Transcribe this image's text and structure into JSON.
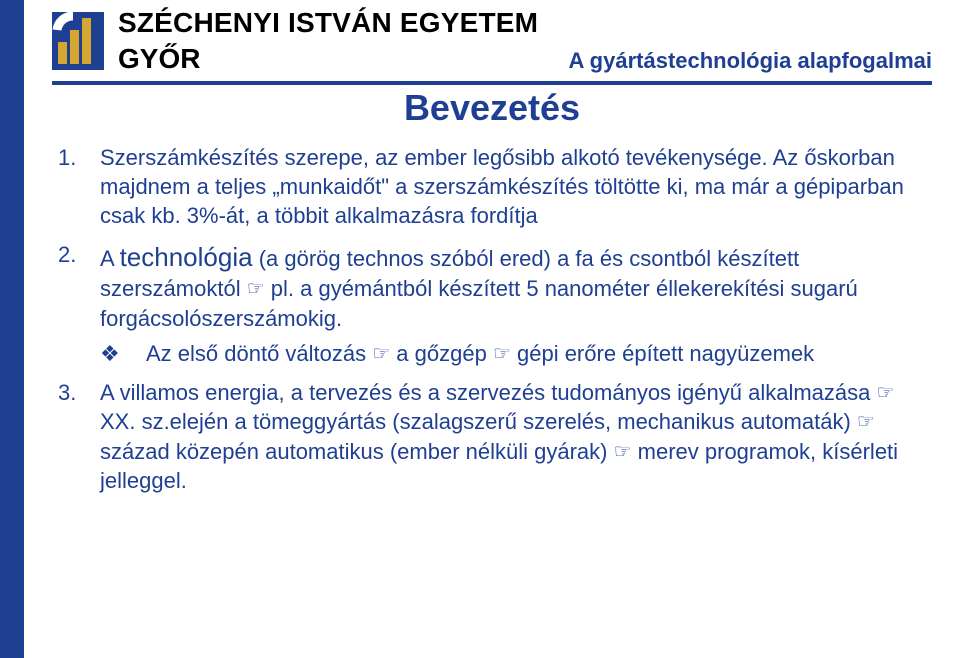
{
  "colors": {
    "blue": "#1f3f93",
    "gold": "#d4a731",
    "black": "#000000",
    "logo_white": "#ffffff"
  },
  "header": {
    "university_line1": "SZÉCHENYI ISTVÁN EGYETEM",
    "university_line2": "GYŐR",
    "subject": "A gyártástechnológia alapfogalmai"
  },
  "title": "Bevezetés",
  "points": {
    "p1": "Szerszámkészítés szerepe, az ember legősibb alkotó tevékenysége. Az őskorban majdnem a teljes „munkaidőt\" a szerszámkészítés töltötte ki, ma már a gépiparban csak kb. 3%-át, a többit alkalmazásra fordítja",
    "p2_a": "A ",
    "p2_tech": "technológia",
    "p2_b": " (a görög technos szóból ered) a fa és csontból készített szerszámoktól ",
    "p2_c": " pl. a gyémántból készített 5 nanométer éllekerekítési sugarú forgácsolószerszámokig.",
    "p2_sub_a": "Az első döntő változás ",
    "p2_sub_b": " a gőzgép ",
    "p2_sub_c": " gépi erőre épített nagyüzemek",
    "p3_a": "A villamos energia, a tervezés és a szervezés tudományos igényű alkalmazása ",
    "p3_b": " XX. sz.elején a tömeggyártás (szalagszerű szerelés, mechanikus automaták) ",
    "p3_c": " század közepén automatikus (ember nélküli gyárak) ",
    "p3_d": " merev programok, kísérleti jelleggel."
  },
  "glyphs": {
    "hand": "☞"
  }
}
